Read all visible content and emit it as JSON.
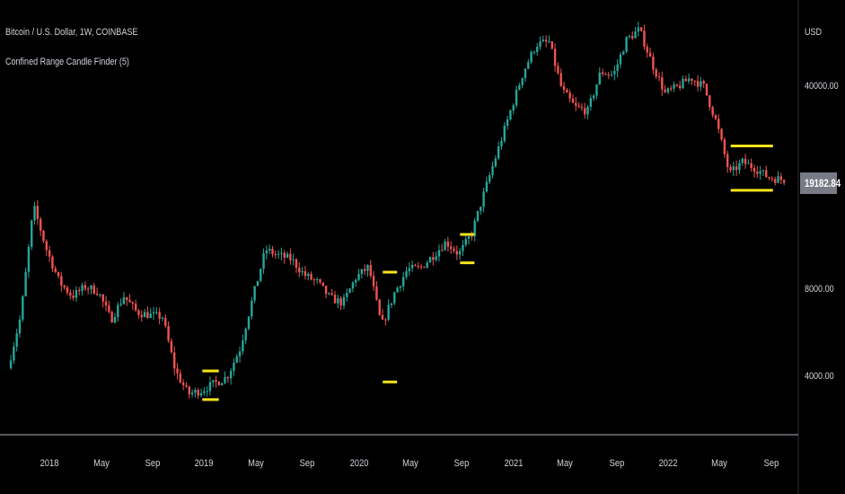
{
  "legend": {
    "title": "Bitcoin / U.S. Dollar, 1W, COINBASE",
    "indicator": "Confined Range Candle Finder (5)"
  },
  "colors": {
    "up": "#26a69a",
    "down": "#ef5350",
    "box": "#f5e31e",
    "badge": "#787b86"
  },
  "chart_data": {
    "type": "candlestick",
    "x_range": [
      "2017-10",
      "2022-10"
    ],
    "y_scale": "log",
    "y_range": [
      2800,
      72000
    ],
    "currency_label": "USD",
    "y_ticks": [
      {
        "value": 40000,
        "label": "40000.00"
      },
      {
        "value": 16000,
        "label": ""
      },
      {
        "value": 8000,
        "label": "8000.00"
      },
      {
        "value": 4000,
        "label": "4000.00"
      }
    ],
    "last_price": "19182.84",
    "x_ticks": [
      {
        "date": "2018-01",
        "label": "2018"
      },
      {
        "date": "2018-05",
        "label": "May"
      },
      {
        "date": "2018-09",
        "label": "Sep"
      },
      {
        "date": "2019-01",
        "label": "2019"
      },
      {
        "date": "2019-05",
        "label": "May"
      },
      {
        "date": "2019-09",
        "label": "Sep"
      },
      {
        "date": "2020-01",
        "label": "2020"
      },
      {
        "date": "2020-05",
        "label": "May"
      },
      {
        "date": "2020-09",
        "label": "Sep"
      },
      {
        "date": "2021-01",
        "label": "2021"
      },
      {
        "date": "2021-05",
        "label": "May"
      },
      {
        "date": "2021-09",
        "label": "Sep"
      },
      {
        "date": "2022-01",
        "label": "2022"
      },
      {
        "date": "2022-05",
        "label": "May"
      },
      {
        "date": "2022-09",
        "label": "Sep"
      }
    ],
    "price_path": [
      [
        "2017-10",
        4300
      ],
      [
        "2017-11",
        6500
      ],
      [
        "2017-12",
        15500
      ],
      [
        "2018-01",
        11000
      ],
      [
        "2018-02",
        8500
      ],
      [
        "2018-03",
        7600
      ],
      [
        "2018-04",
        8200
      ],
      [
        "2018-05",
        7900
      ],
      [
        "2018-06",
        6300
      ],
      [
        "2018-07",
        7600
      ],
      [
        "2018-08",
        6700
      ],
      [
        "2018-09",
        6550
      ],
      [
        "2018-10",
        6450
      ],
      [
        "2018-11",
        4200
      ],
      [
        "2018-12",
        3500
      ],
      [
        "2019-01",
        3600
      ],
      [
        "2019-02",
        3800
      ],
      [
        "2019-03",
        4000
      ],
      [
        "2019-04",
        5000
      ],
      [
        "2019-05",
        7500
      ],
      [
        "2019-06",
        11000
      ],
      [
        "2019-07",
        10500
      ],
      [
        "2019-08",
        10200
      ],
      [
        "2019-09",
        9000
      ],
      [
        "2019-10",
        8500
      ],
      [
        "2019-11",
        7500
      ],
      [
        "2019-12",
        7200
      ],
      [
        "2020-01",
        8800
      ],
      [
        "2020-02",
        9600
      ],
      [
        "2020-03",
        6000
      ],
      [
        "2020-04",
        7800
      ],
      [
        "2020-05",
        9400
      ],
      [
        "2020-06",
        9500
      ],
      [
        "2020-07",
        10500
      ],
      [
        "2020-08",
        11700
      ],
      [
        "2020-09",
        10600
      ],
      [
        "2020-10",
        12500
      ],
      [
        "2020-11",
        17500
      ],
      [
        "2020-12",
        24000
      ],
      [
        "2021-01",
        33000
      ],
      [
        "2021-02",
        45000
      ],
      [
        "2021-03",
        56000
      ],
      [
        "2021-04",
        57000
      ],
      [
        "2021-05",
        39000
      ],
      [
        "2021-06",
        34000
      ],
      [
        "2021-07",
        33000
      ],
      [
        "2021-08",
        45000
      ],
      [
        "2021-09",
        44000
      ],
      [
        "2021-10",
        58000
      ],
      [
        "2021-11",
        63000
      ],
      [
        "2021-12",
        48000
      ],
      [
        "2022-01",
        38000
      ],
      [
        "2022-02",
        40000
      ],
      [
        "2022-03",
        43000
      ],
      [
        "2022-04",
        40000
      ],
      [
        "2022-05",
        30000
      ],
      [
        "2022-06",
        20000
      ],
      [
        "2022-07",
        22000
      ],
      [
        "2022-08",
        21000
      ],
      [
        "2022-09",
        19500
      ],
      [
        "2022-10",
        19182
      ]
    ],
    "confined_ranges": [
      {
        "start": "2019-01",
        "end": "2019-02",
        "high": 4200,
        "low": 3350
      },
      {
        "start": "2020-03",
        "end": "2020-03",
        "high": 9200,
        "low": 3850
      },
      {
        "start": "2020-09",
        "end": "2020-09",
        "high": 12400,
        "low": 9900
      },
      {
        "start": "2022-06",
        "end": "2022-09",
        "high": 25000,
        "low": 17600
      }
    ]
  }
}
